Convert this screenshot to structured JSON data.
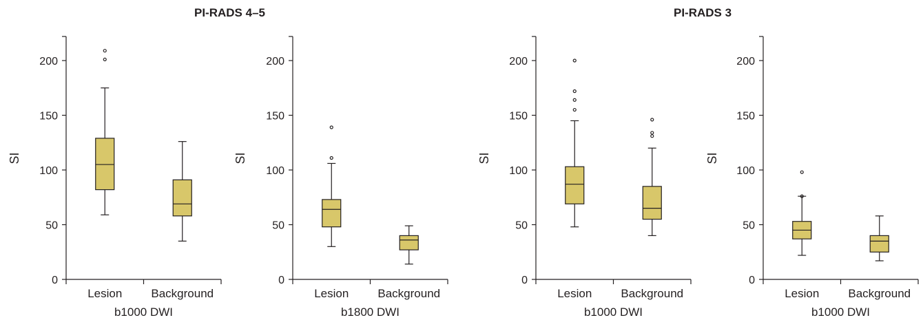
{
  "titles": {
    "left": "PI-RADS 4–5",
    "right": "PI-RADS 3"
  },
  "style": {
    "box_fill": "#d8c76a",
    "stroke": "#231f20",
    "background": "#ffffff"
  },
  "chart_data": [
    {
      "type": "box",
      "group": "PI-RADS 4–5",
      "xlabel": "b1000 DWI",
      "ylabel": "SI",
      "ylim": [
        0,
        220
      ],
      "yticks": [
        0,
        50,
        100,
        150,
        200
      ],
      "categories": [
        "Lesion",
        "Background"
      ],
      "boxes": [
        {
          "category": "Lesion",
          "whisker_low": 59,
          "q1": 82,
          "median": 105,
          "q3": 129,
          "whisker_high": 175,
          "outliers": [
            201,
            209
          ]
        },
        {
          "category": "Background",
          "whisker_low": 35,
          "q1": 58,
          "median": 69,
          "q3": 91,
          "whisker_high": 126,
          "outliers": []
        }
      ]
    },
    {
      "type": "box",
      "group": "PI-RADS 4–5",
      "xlabel": "b1800 DWI",
      "ylabel": "SI",
      "ylim": [
        0,
        220
      ],
      "yticks": [
        0,
        50,
        100,
        150,
        200
      ],
      "categories": [
        "Lesion",
        "Background"
      ],
      "boxes": [
        {
          "category": "Lesion",
          "whisker_low": 30,
          "q1": 48,
          "median": 64,
          "q3": 73,
          "whisker_high": 106,
          "outliers": [
            111,
            139
          ]
        },
        {
          "category": "Background",
          "whisker_low": 14,
          "q1": 27,
          "median": 36,
          "q3": 40,
          "whisker_high": 49,
          "outliers": []
        }
      ]
    },
    {
      "type": "box",
      "group": "PI-RADS 3",
      "xlabel": "b1000 DWI",
      "ylabel": "SI",
      "ylim": [
        0,
        220
      ],
      "yticks": [
        0,
        50,
        100,
        150,
        200
      ],
      "categories": [
        "Lesion",
        "Background"
      ],
      "boxes": [
        {
          "category": "Lesion",
          "whisker_low": 48,
          "q1": 69,
          "median": 87,
          "q3": 103,
          "whisker_high": 145,
          "outliers": [
            155,
            164,
            172,
            200
          ]
        },
        {
          "category": "Background",
          "whisker_low": 40,
          "q1": 55,
          "median": 65,
          "q3": 85,
          "whisker_high": 120,
          "outliers": [
            131,
            134,
            146
          ]
        }
      ]
    },
    {
      "type": "box",
      "group": "PI-RADS 3",
      "xlabel": "b1000 DWI",
      "ylabel": "SI",
      "ylim": [
        0,
        220
      ],
      "yticks": [
        0,
        50,
        100,
        150,
        200
      ],
      "categories": [
        "Lesion",
        "Background"
      ],
      "boxes": [
        {
          "category": "Lesion",
          "whisker_low": 22,
          "q1": 37,
          "median": 45,
          "q3": 53,
          "whisker_high": 76,
          "outliers": [
            76,
            98
          ]
        },
        {
          "category": "Background",
          "whisker_low": 17,
          "q1": 25,
          "median": 35,
          "q3": 40,
          "whisker_high": 58,
          "outliers": []
        }
      ]
    }
  ]
}
